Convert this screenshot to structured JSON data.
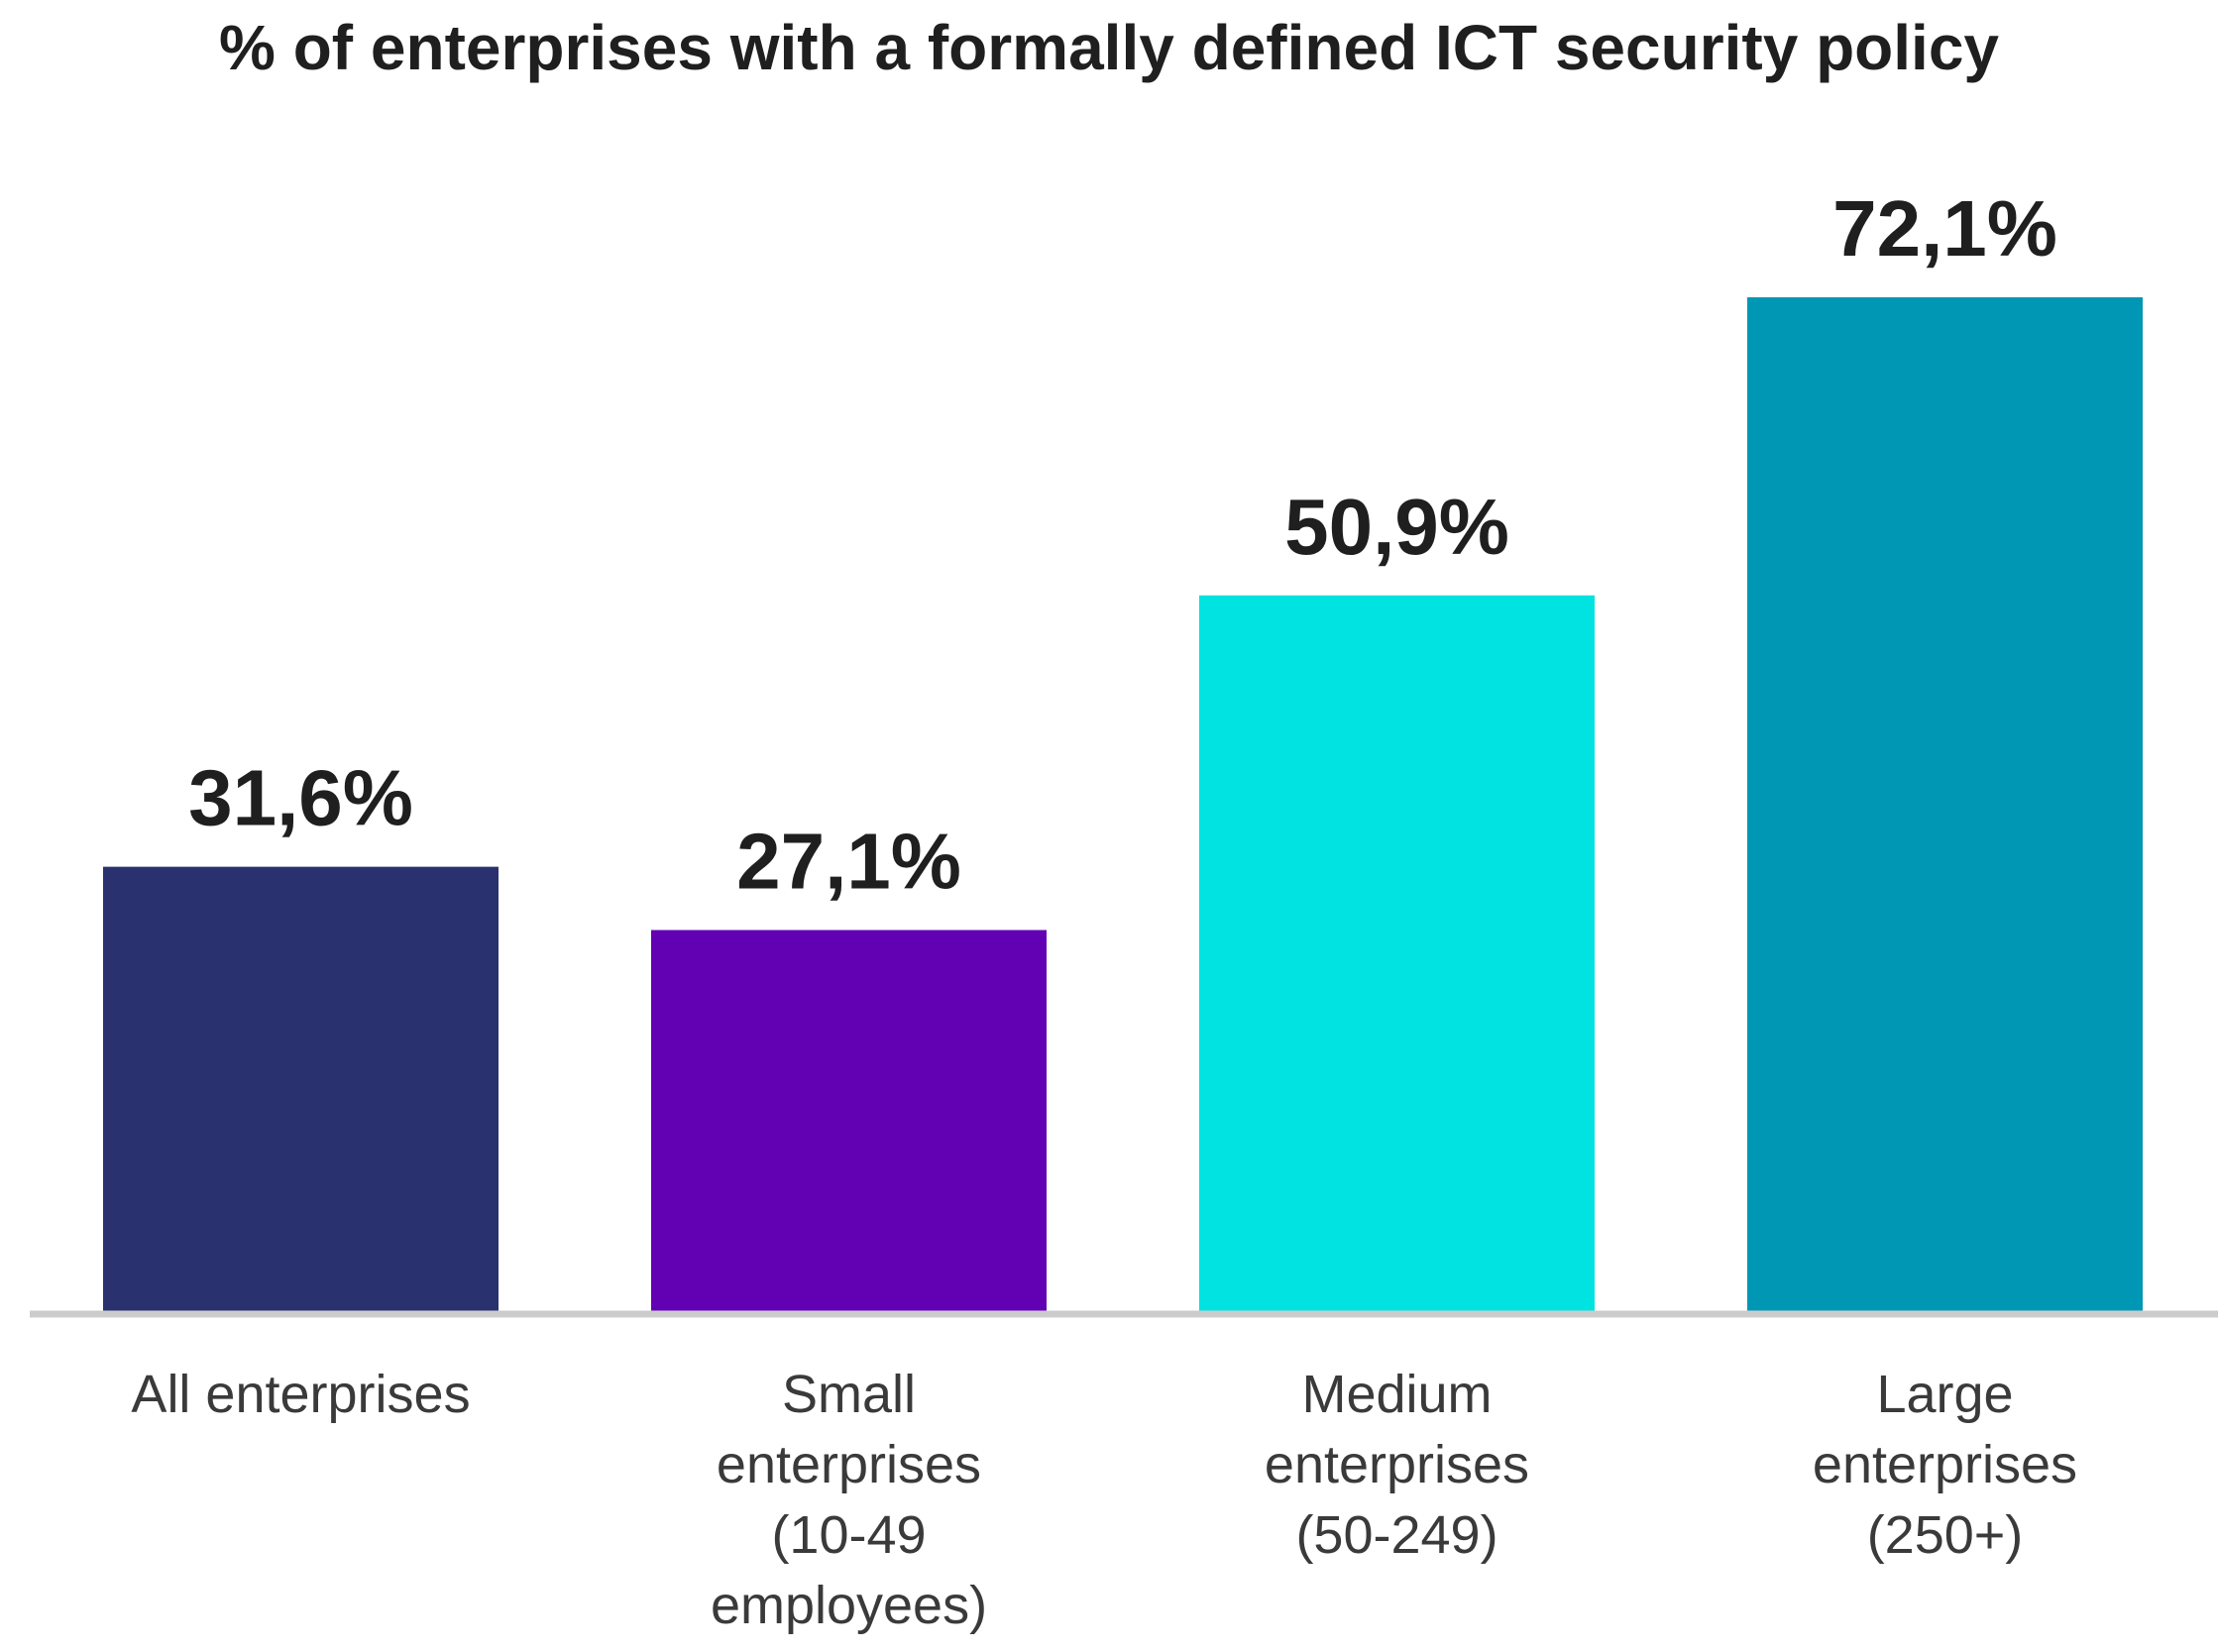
{
  "chart_data": {
    "type": "bar",
    "title": "% of enterprises with a formally defined ICT security policy",
    "xlabel": "",
    "ylabel": "",
    "ylim": [
      0,
      72.1
    ],
    "grid": false,
    "categories": [
      [
        "All enterprises"
      ],
      [
        "Small",
        "enterprises",
        "(10-49",
        "employees)"
      ],
      [
        "Medium",
        "enterprises",
        "(50-249)"
      ],
      [
        "Large",
        "enterprises",
        "(250+)"
      ]
    ],
    "values": [
      31.6,
      27.1,
      50.9,
      72.1
    ],
    "data_labels": [
      "31,6%",
      "27,1%",
      "50,9%",
      "72,1%"
    ],
    "colors": [
      "#29316f",
      "#6200b3",
      "#00e3e0",
      "#0097b5"
    ],
    "axis_color": "#cccccc"
  }
}
